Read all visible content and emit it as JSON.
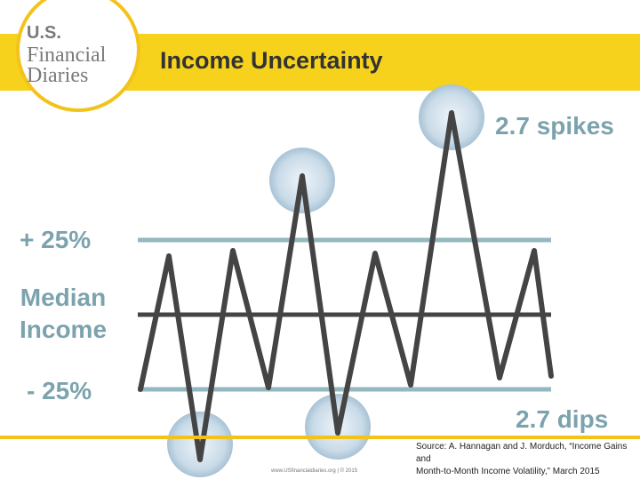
{
  "logo": {
    "line1": "U.S.",
    "line2": "Financial",
    "line3": "Diaries"
  },
  "title": "Income Uncertainty",
  "labels": {
    "plus": "+ 25%",
    "median_line1": "Median",
    "median_line2": "Income",
    "minus": "- 25%",
    "spikes": "2.7 spikes",
    "dips": "2.7 dips"
  },
  "source": {
    "line1": "Source: A. Hannagan and J. Morduch, “Income Gains and",
    "line2": "Month-to-Month Income Volatility,”  March 2015"
  },
  "footer": "www.USfinancialdiaries.org  |  © 2015",
  "colors": {
    "banner": "#f6d21c",
    "band": "#93b8bf",
    "line": "#444444",
    "label": "#7ca3ad",
    "circle": "#c4d8e6"
  }
}
